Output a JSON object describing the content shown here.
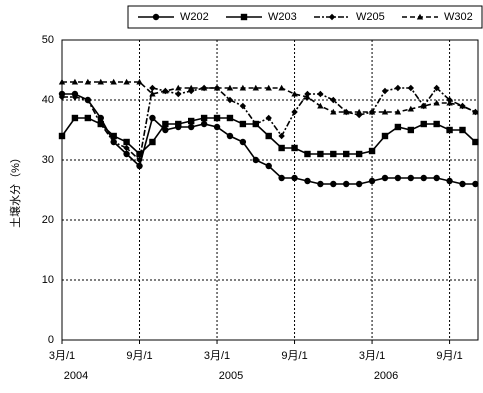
{
  "chart_data": {
    "type": "line",
    "y_label": "土壌水分（%）",
    "x": [
      0,
      1,
      2,
      3,
      4,
      5,
      6,
      7,
      8,
      9,
      10,
      11,
      12,
      13,
      14,
      15,
      16,
      17,
      18,
      19,
      20,
      21,
      22,
      23,
      24,
      25,
      26,
      27,
      28,
      29,
      30,
      31,
      32
    ],
    "xlim": [
      0,
      32.2
    ],
    "xticks": [
      {
        "value": 0,
        "label": "3月/1"
      },
      {
        "value": 6,
        "label": "9月/1"
      },
      {
        "value": 12,
        "label": "3月/1"
      },
      {
        "value": 18,
        "label": "9月/1"
      },
      {
        "value": 24,
        "label": "3月/1"
      },
      {
        "value": 30,
        "label": "9月/1"
      }
    ],
    "year_labels": [
      {
        "value": 0,
        "label": "2004"
      },
      {
        "value": 12,
        "label": "2005"
      },
      {
        "value": 24,
        "label": "2006"
      }
    ],
    "ylim": [
      0,
      50
    ],
    "yticks": [
      0,
      10,
      20,
      30,
      40,
      50
    ],
    "grid": true,
    "series": [
      {
        "name": "W202",
        "color": "#000000",
        "marker": "circle",
        "dash": "solid",
        "values": [
          41,
          41,
          40,
          37,
          33,
          31,
          29,
          37,
          35,
          35.5,
          35.5,
          36,
          35.5,
          34,
          33,
          30,
          29,
          27,
          27,
          26.5,
          26,
          26,
          26,
          26,
          26.5,
          27,
          27,
          27,
          27,
          27,
          26.5,
          26,
          26
        ]
      },
      {
        "name": "W203",
        "color": "#000000",
        "marker": "square",
        "dash": "solid",
        "values": [
          34,
          37,
          37,
          36,
          34,
          33,
          31,
          33,
          36,
          36,
          36.5,
          37,
          37,
          37,
          36,
          36,
          34,
          32,
          32,
          31,
          31,
          31,
          31,
          31,
          31.5,
          34,
          35.5,
          35,
          36,
          36,
          35,
          35,
          33
        ]
      },
      {
        "name": "W205",
        "color": "#000000",
        "marker": "diamond",
        "dash": "dashdot",
        "values": [
          40.5,
          40.5,
          40,
          36,
          33,
          32,
          30,
          42,
          41.5,
          41,
          41.5,
          42,
          42,
          40,
          39,
          36,
          37,
          34,
          38,
          41,
          41,
          40,
          38,
          37.5,
          38,
          41.5,
          42,
          42,
          39,
          42,
          40,
          39,
          38
        ]
      },
      {
        "name": "W302",
        "color": "#000000",
        "marker": "triangle",
        "dash": "dashed",
        "values": [
          43,
          43,
          43,
          43,
          43,
          43,
          43,
          41,
          41.5,
          42,
          42,
          42,
          42,
          42,
          42,
          42,
          42,
          42,
          41,
          40.5,
          39,
          38,
          38,
          38,
          38,
          38,
          38,
          38.5,
          39,
          39.5,
          39.5,
          39,
          38
        ]
      }
    ]
  }
}
